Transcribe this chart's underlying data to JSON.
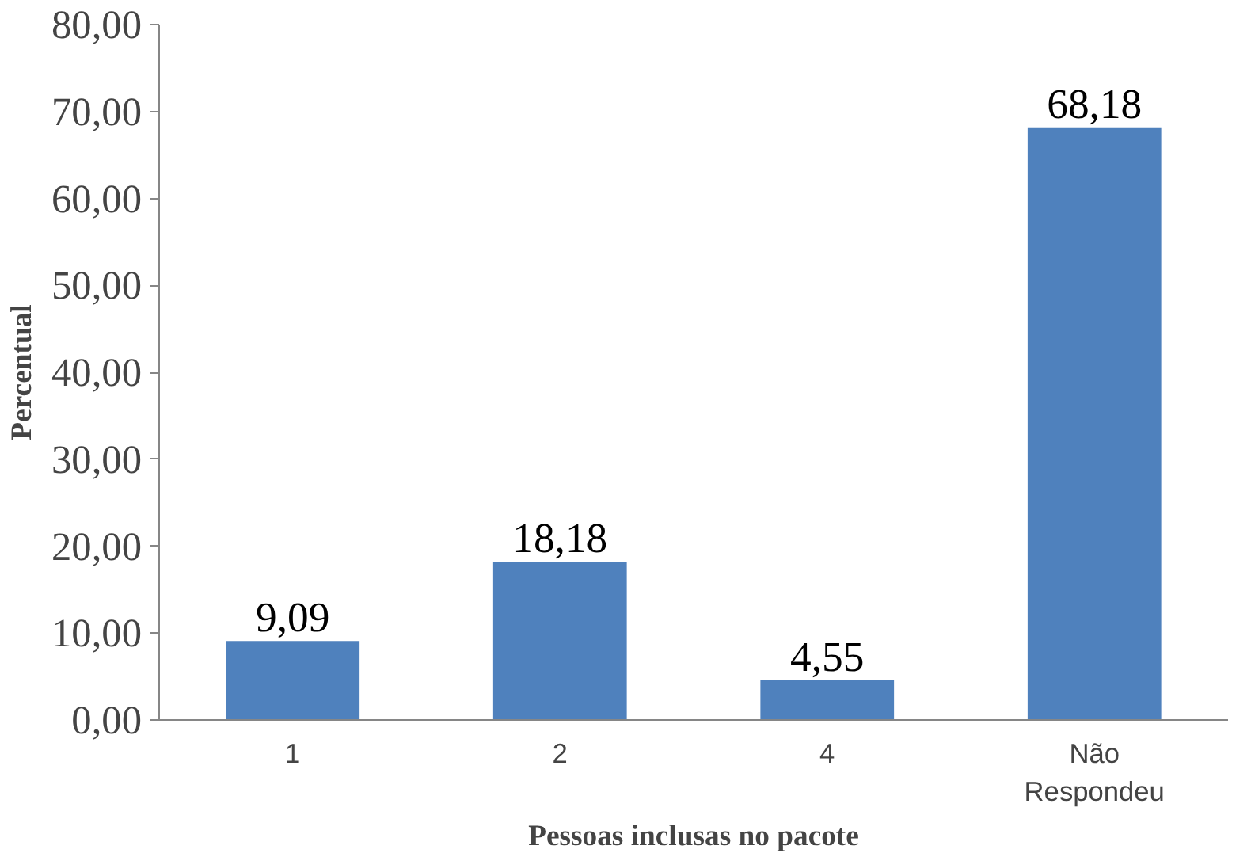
{
  "chart_data": {
    "type": "bar",
    "xlabel": "Pessoas inclusas no pacote",
    "ylabel": "Percentual",
    "categories": [
      "1",
      "2",
      "4",
      "Não\nRespondeu"
    ],
    "values": [
      9.09,
      18.18,
      4.55,
      68.18
    ],
    "value_labels": [
      "9,09",
      "18,18",
      "4,55",
      "68,18"
    ],
    "color": "#4f81bd",
    "ylim": [
      0,
      80
    ],
    "yticks": [
      {
        "value": 0,
        "label": "0,00"
      },
      {
        "value": 10,
        "label": "10,00"
      },
      {
        "value": 20,
        "label": "20,00"
      },
      {
        "value": 30,
        "label": "30,00"
      },
      {
        "value": 40,
        "label": "40,00"
      },
      {
        "value": 50,
        "label": "50,00"
      },
      {
        "value": 60,
        "label": "60,00"
      },
      {
        "value": 70,
        "label": "70,00"
      },
      {
        "value": 80,
        "label": "80,00"
      }
    ],
    "grid": false
  }
}
